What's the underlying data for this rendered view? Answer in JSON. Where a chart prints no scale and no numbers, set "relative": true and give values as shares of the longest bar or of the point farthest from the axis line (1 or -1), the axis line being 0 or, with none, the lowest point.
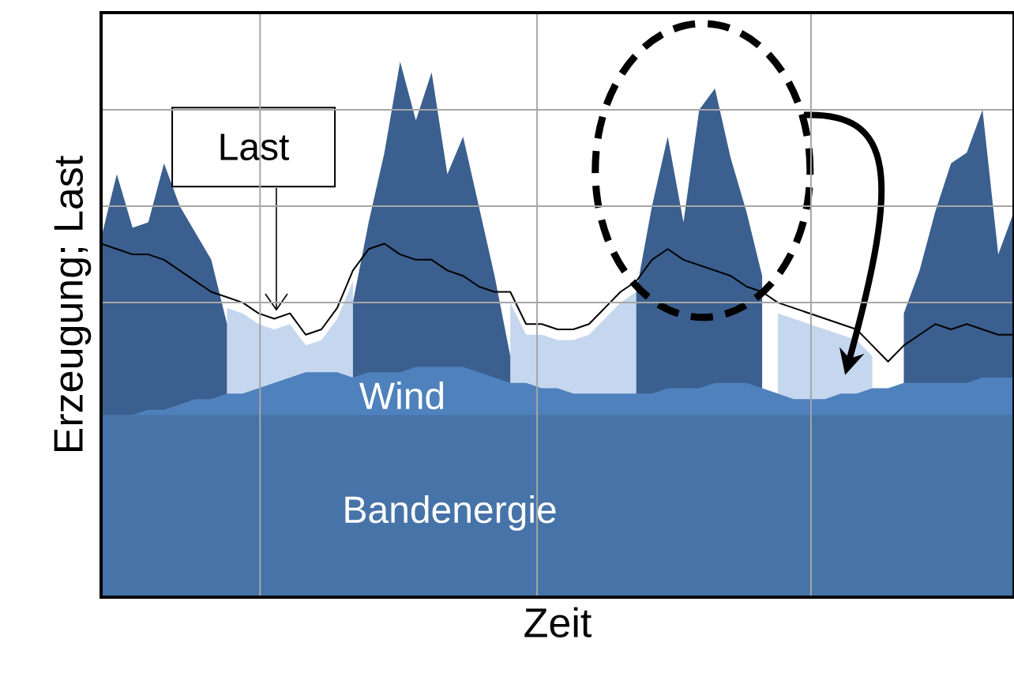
{
  "chart_data": {
    "type": "area",
    "relative": true,
    "xlabel": "Zeit",
    "ylabel": "Erzeugung; Last",
    "grid": true,
    "tick_labels": false,
    "categories": [
      null,
      null,
      null,
      null,
      null,
      null,
      null,
      null,
      null,
      null,
      null,
      null,
      null,
      null,
      null,
      null,
      null,
      null,
      null,
      null,
      null,
      null,
      null,
      null,
      null,
      null,
      null,
      null,
      null,
      null,
      null,
      null,
      null,
      null,
      null,
      null,
      null,
      null,
      null,
      null,
      null,
      null,
      null,
      null,
      null,
      null,
      null,
      null,
      null,
      null,
      null,
      null,
      null,
      null,
      null,
      null,
      null,
      null,
      null
    ],
    "series": [
      {
        "type": "area",
        "color": "#c5d7ee",
        "values": [
          null,
          null,
          null,
          null,
          null,
          null,
          null,
          null,
          0.54,
          0.53,
          0.51,
          0.5,
          0.51,
          0.47,
          0.48,
          0.52,
          0.59,
          null,
          null,
          null,
          null,
          null,
          null,
          null,
          null,
          null,
          0.55,
          0.49,
          0.49,
          0.48,
          0.48,
          0.49,
          0.52,
          0.55,
          0.57,
          null,
          null,
          null,
          null,
          null,
          null,
          null,
          null,
          0.53,
          0.52,
          0.51,
          0.5,
          0.49,
          0.48,
          0.45,
          null,
          null,
          null,
          null,
          null,
          null,
          null,
          null,
          null
        ]
      },
      {
        "type": "area",
        "color": "#3b5f8e",
        "values": [
          0.67,
          0.79,
          0.69,
          0.7,
          0.81,
          0.73,
          0.68,
          0.63,
          0.51,
          null,
          null,
          null,
          null,
          null,
          null,
          null,
          0.55,
          0.7,
          0.83,
          1.0,
          0.89,
          0.98,
          0.79,
          0.86,
          0.73,
          0.6,
          0.45,
          null,
          null,
          null,
          null,
          null,
          null,
          null,
          0.57,
          0.73,
          0.86,
          0.7,
          0.91,
          0.95,
          0.82,
          0.72,
          0.6,
          null,
          null,
          null,
          null,
          null,
          null,
          null,
          null,
          0.53,
          0.61,
          0.72,
          0.81,
          0.83,
          0.91,
          0.64,
          0.72
        ]
      },
      {
        "type": "area",
        "name": "Wind",
        "color": "#4f81bd",
        "values": [
          0.34,
          0.34,
          0.34,
          0.35,
          0.35,
          0.36,
          0.37,
          0.37,
          0.38,
          0.38,
          0.39,
          0.4,
          0.41,
          0.42,
          0.42,
          0.42,
          0.41,
          0.42,
          0.42,
          0.42,
          0.43,
          0.43,
          0.43,
          0.43,
          0.42,
          0.41,
          0.4,
          0.4,
          0.39,
          0.39,
          0.38,
          0.38,
          0.38,
          0.38,
          0.38,
          0.38,
          0.39,
          0.39,
          0.39,
          0.4,
          0.4,
          0.4,
          0.39,
          0.38,
          0.37,
          0.37,
          0.37,
          0.38,
          0.38,
          0.39,
          0.39,
          0.4,
          0.4,
          0.4,
          0.4,
          0.4,
          0.41,
          0.41,
          0.41
        ]
      },
      {
        "type": "area",
        "name": "Bandenergie",
        "color": "#4673a8",
        "values": [
          0.34,
          0.34,
          0.34,
          0.34,
          0.34,
          0.34,
          0.34,
          0.34,
          0.34,
          0.34,
          0.34,
          0.34,
          0.34,
          0.34,
          0.34,
          0.34,
          0.34,
          0.34,
          0.34,
          0.34,
          0.34,
          0.34,
          0.34,
          0.34,
          0.34,
          0.34,
          0.34,
          0.34,
          0.34,
          0.34,
          0.34,
          0.34,
          0.34,
          0.34,
          0.34,
          0.34,
          0.34,
          0.34,
          0.34,
          0.34,
          0.34,
          0.34,
          0.34,
          0.34,
          0.34,
          0.34,
          0.34,
          0.34,
          0.34,
          0.34,
          0.34,
          0.34,
          0.34,
          0.34,
          0.34,
          0.34,
          0.34,
          0.34,
          0.34
        ]
      },
      {
        "type": "line",
        "name": "Last",
        "color": "#000000",
        "values": [
          0.66,
          0.65,
          0.64,
          0.64,
          0.63,
          0.61,
          0.59,
          0.57,
          0.56,
          0.55,
          0.53,
          0.52,
          0.53,
          0.49,
          0.5,
          0.54,
          0.61,
          0.65,
          0.66,
          0.64,
          0.63,
          0.63,
          0.61,
          0.6,
          0.58,
          0.57,
          0.57,
          0.51,
          0.51,
          0.5,
          0.5,
          0.51,
          0.54,
          0.57,
          0.59,
          0.63,
          0.65,
          0.63,
          0.62,
          0.61,
          0.6,
          0.58,
          0.57,
          0.55,
          0.54,
          0.53,
          0.52,
          0.51,
          0.5,
          0.47,
          0.44,
          0.47,
          0.49,
          0.51,
          0.5,
          0.51,
          0.5,
          0.49,
          0.49
        ]
      }
    ]
  }
}
